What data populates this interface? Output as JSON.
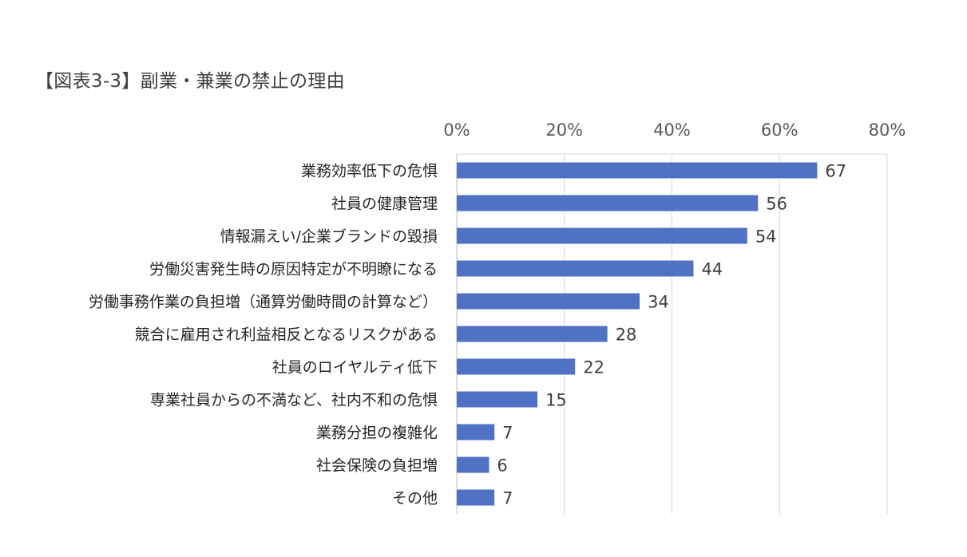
{
  "chart_data": {
    "type": "bar",
    "orientation": "horizontal",
    "title": "【図表3-3】副業・兼業の禁止の理由",
    "categories": [
      "業務効率低下の危惧",
      "社員の健康管理",
      "情報漏えい/企業ブランドの毀損",
      "労働災害発生時の原因特定が不明瞭になる",
      "労働事務作業の負担増（通算労働時間の計算など）",
      "競合に雇用され利益相反となるリスクがある",
      "社員のロイヤルティ低下",
      "専業社員からの不満など、社内不和の危惧",
      "業務分担の複雑化",
      "社会保険の負担増",
      "その他"
    ],
    "values": [
      67,
      56,
      54,
      44,
      34,
      28,
      22,
      15,
      7,
      6,
      7
    ],
    "data_labels": [
      "67",
      "56",
      "54",
      "44",
      "34",
      "28",
      "22",
      "15",
      "7",
      "6",
      "7"
    ],
    "xlim": [
      0,
      80
    ],
    "x_ticks": [
      0,
      20,
      40,
      60,
      80
    ],
    "x_tick_labels": [
      "0%",
      "20%",
      "40%",
      "60%",
      "80%"
    ],
    "x_axis_position": "top",
    "grid": true,
    "legend": "none",
    "bar_color": "#4F72C4",
    "grid_color": "#D9D9D9"
  }
}
